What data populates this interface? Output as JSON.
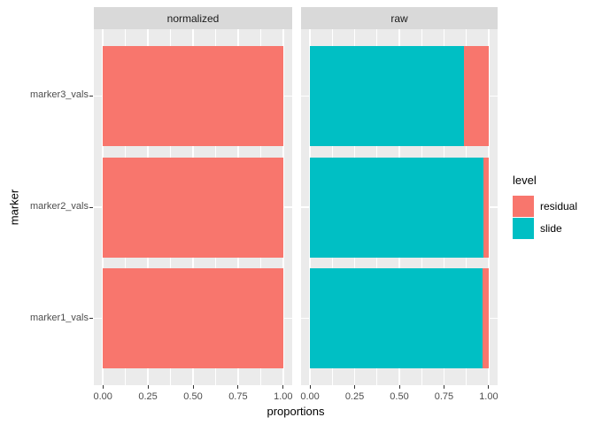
{
  "chart_data": {
    "type": "bar",
    "orientation": "horizontal",
    "stacked": true,
    "title": "",
    "xlabel": "proportions",
    "ylabel": "marker",
    "categories": [
      "marker1_vals",
      "marker2_vals",
      "marker3_vals"
    ],
    "x_ticks": [
      0.0,
      0.25,
      0.5,
      0.75,
      1.0
    ],
    "x_tick_labels": [
      "0.00",
      "0.25",
      "0.50",
      "0.75",
      "1.00"
    ],
    "minor_ticks": [
      0.125,
      0.375,
      0.625,
      0.875
    ],
    "xlim": [
      -0.05,
      1.05
    ],
    "grid": true,
    "bar_width_fraction": 0.9,
    "facets": [
      {
        "label": "normalized",
        "series": [
          {
            "name": "slide",
            "values": [
              0.0,
              0.0,
              0.0
            ]
          },
          {
            "name": "residual",
            "values": [
              1.0,
              1.0,
              1.0
            ]
          }
        ]
      },
      {
        "label": "raw",
        "series": [
          {
            "name": "slide",
            "values": [
              0.965,
              0.97,
              0.86
            ]
          },
          {
            "name": "residual",
            "values": [
              0.035,
              0.03,
              0.14
            ]
          }
        ]
      }
    ],
    "legend": {
      "title": "level",
      "position": "right",
      "entries": [
        {
          "label": "residual",
          "color": "#F8766D"
        },
        {
          "label": "slide",
          "color": "#00BFC4"
        }
      ]
    },
    "colors": {
      "residual": "#F8766D",
      "slide": "#00BFC4",
      "panel_bg": "#EBEBEB",
      "strip_bg": "#D9D9D9",
      "grid": "#FFFFFF",
      "tick_text": "#4D4D4D",
      "axis_text": "#000000"
    }
  }
}
